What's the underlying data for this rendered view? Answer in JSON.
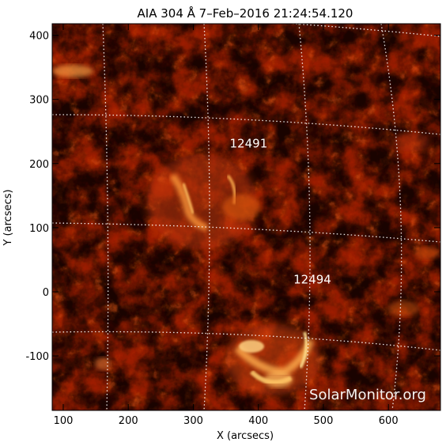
{
  "chart_data": {
    "type": "heatmap",
    "title": "AIA 304 Å  7–Feb–2016 21:24:54.120",
    "xlabel": "X (arcsecs)",
    "ylabel": "Y (arcsecs)",
    "xlim": [
      83,
      680
    ],
    "ylim": [
      -185,
      418
    ],
    "x_ticks": [
      100,
      200,
      300,
      400,
      500,
      600
    ],
    "y_ticks": [
      -100,
      0,
      100,
      200,
      300,
      400
    ],
    "grid": "dotted white heliographic grid lines",
    "colormap": "SDO AIA 304 red-orange",
    "regions": [
      {
        "label": "12491",
        "x": 385,
        "y": 225
      },
      {
        "label": "12494",
        "x": 483,
        "y": 13
      }
    ],
    "watermark": "SolarMonitor.org"
  },
  "colors": {
    "background": "#ffffff",
    "plot_bg": "#1a0300",
    "dark_red": "#4a0900",
    "red": "#a02000",
    "orange": "#e05a10",
    "bright": "#ffc060",
    "grid": "#ffffff",
    "text": "#000000"
  }
}
